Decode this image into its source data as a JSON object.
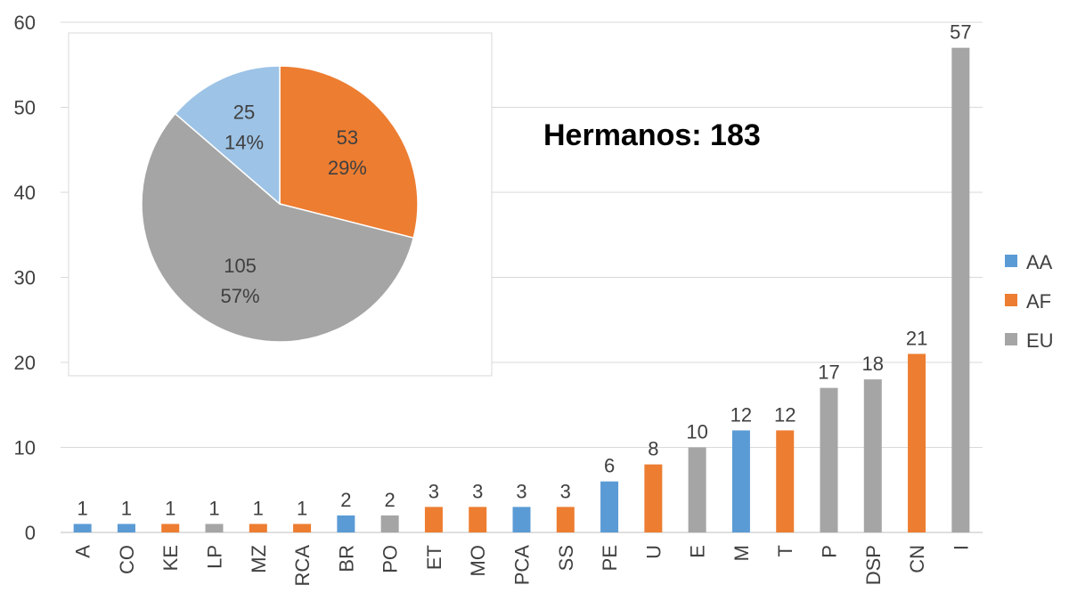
{
  "chart_data": [
    {
      "type": "bar",
      "title": "",
      "xlabel": "",
      "ylabel": "",
      "ylim": [
        0,
        60
      ],
      "yticks": [
        0,
        10,
        20,
        30,
        40,
        50,
        60
      ],
      "grid": true,
      "categories": [
        "A",
        "CO",
        "KE",
        "LP",
        "MZ",
        "RCA",
        "BR",
        "PO",
        "ET",
        "MO",
        "PCA",
        "SS",
        "PE",
        "U",
        "E",
        "M",
        "T",
        "P",
        "DSP",
        "CN",
        "I"
      ],
      "values": [
        1,
        1,
        1,
        1,
        1,
        1,
        2,
        2,
        3,
        3,
        3,
        3,
        6,
        8,
        10,
        12,
        12,
        17,
        18,
        21,
        57
      ],
      "groups": [
        "AA",
        "AA",
        "AF",
        "EU",
        "AF",
        "AF",
        "AA",
        "EU",
        "AF",
        "AF",
        "AA",
        "AF",
        "AA",
        "AF",
        "EU",
        "AA",
        "AF",
        "EU",
        "EU",
        "AF",
        "EU"
      ],
      "data_labels": true,
      "legend": {
        "placement": "right",
        "entries": [
          {
            "name": "AA",
            "color": "#5B9BD5"
          },
          {
            "name": "AF",
            "color": "#ED7D31"
          },
          {
            "name": "EU",
            "color": "#A5A5A5"
          }
        ]
      },
      "annotation": "Hermanos: 183"
    },
    {
      "type": "pie",
      "title": "",
      "slices": [
        {
          "group": "AF",
          "value": 53,
          "value_label": "53",
          "percent_label": "29%",
          "color": "#ED7D31"
        },
        {
          "group": "EU",
          "value": 105,
          "value_label": "105",
          "percent_label": "57%",
          "color": "#A5A5A5"
        },
        {
          "group": "AA",
          "value": 25,
          "value_label": "25",
          "percent_label": "14%",
          "color": "#9DC3E6"
        }
      ]
    }
  ]
}
